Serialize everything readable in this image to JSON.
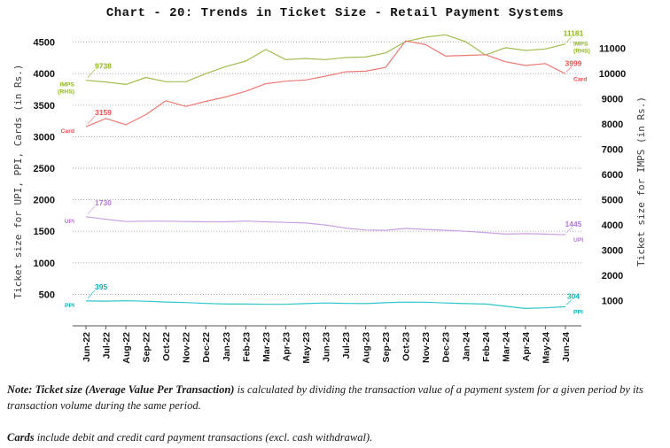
{
  "title": "Chart - 20: Trends in Ticket Size - Retail Payment Systems",
  "chart_data": {
    "type": "line",
    "title": "Chart - 20: Trends in Ticket Size - Retail Payment Systems",
    "grid": "horizontal-dotted",
    "legend": "inline-end-labels",
    "categories": [
      "Jun-22",
      "Jul-22",
      "Aug-22",
      "Sep-22",
      "Oct-22",
      "Nov-22",
      "Dec-22",
      "Jan-23",
      "Feb-23",
      "Mar-23",
      "Apr-23",
      "May-23",
      "Jun-23",
      "Jul-23",
      "Aug-23",
      "Sep-23",
      "Oct-23",
      "Nov-23",
      "Dec-23",
      "Jan-24",
      "Feb-24",
      "Mar-24",
      "Apr-24",
      "May-24",
      "Jun-24"
    ],
    "left_axis": {
      "label": "Ticket size for UPI, PPI, Cards (in Rs.)",
      "ticks": [
        500,
        1000,
        1500,
        2000,
        2500,
        3000,
        3500,
        4000,
        4500
      ],
      "range": [
        0,
        4620
      ]
    },
    "right_axis": {
      "label": "Ticket size for IMPS (in Rs.)",
      "ticks": [
        1000,
        2000,
        3000,
        4000,
        5000,
        6000,
        7000,
        8000,
        9000,
        10000,
        11000
      ],
      "range": [
        0,
        11550
      ]
    },
    "series": [
      {
        "name": "IMPS (RHS)",
        "name_lines": [
          "IMPS",
          "(RHS)"
        ],
        "axis": "right",
        "color": "#a2bd50",
        "label_color": "#8fb623",
        "start_label": "9738",
        "end_label": "11181",
        "values": [
          9738,
          9670,
          9570,
          9850,
          9680,
          9680,
          10000,
          10280,
          10500,
          10960,
          10560,
          10600,
          10560,
          10640,
          10660,
          10820,
          11270,
          11450,
          11540,
          11270,
          10740,
          11030,
          10920,
          10980,
          11181
        ]
      },
      {
        "name": "Card",
        "name_lines": [
          "Card"
        ],
        "axis": "left",
        "color": "#ea7a74",
        "label_color": "#f1504e",
        "start_label": "3159",
        "end_label": "3999",
        "values": [
          3159,
          3290,
          3190,
          3350,
          3570,
          3480,
          3560,
          3630,
          3720,
          3840,
          3880,
          3900,
          3960,
          4030,
          4040,
          4100,
          4520,
          4460,
          4280,
          4290,
          4300,
          4190,
          4130,
          4160,
          3999
        ]
      },
      {
        "name": "UPI",
        "name_lines": [
          "UPI"
        ],
        "axis": "left",
        "color": "#c9a0e0",
        "label_color": "#b678dd",
        "start_label": "1730",
        "end_label": "1445",
        "values": [
          1730,
          1690,
          1655,
          1660,
          1660,
          1655,
          1650,
          1650,
          1662,
          1650,
          1640,
          1630,
          1600,
          1550,
          1520,
          1515,
          1545,
          1530,
          1515,
          1500,
          1480,
          1455,
          1462,
          1455,
          1445
        ]
      },
      {
        "name": "PPI",
        "name_lines": [
          "PPI"
        ],
        "axis": "left",
        "color": "#2fc5ca",
        "label_color": "#10aebf",
        "start_label": "395",
        "end_label": "304",
        "values": [
          395,
          392,
          398,
          390,
          378,
          369,
          355,
          346,
          346,
          341,
          341,
          352,
          362,
          355,
          353,
          367,
          376,
          375,
          363,
          352,
          345,
          310,
          275,
          285,
          304
        ]
      }
    ]
  },
  "notes": {
    "note1_bold": "Note: Ticket size (Average Value Per Transaction)",
    "note1_rest": " is calculated by dividing the transaction value of a payment system for a given period by its transaction volume during the same period.",
    "note2_bold": "Cards",
    "note2_rest": " include debit and credit card payment transactions (excl. cash withdrawal)."
  },
  "colors": {
    "gridline": "#a8a8a8",
    "axis_line": "#555555",
    "tick_text": "#111111",
    "axis_title_text": "#3c3c3c"
  }
}
